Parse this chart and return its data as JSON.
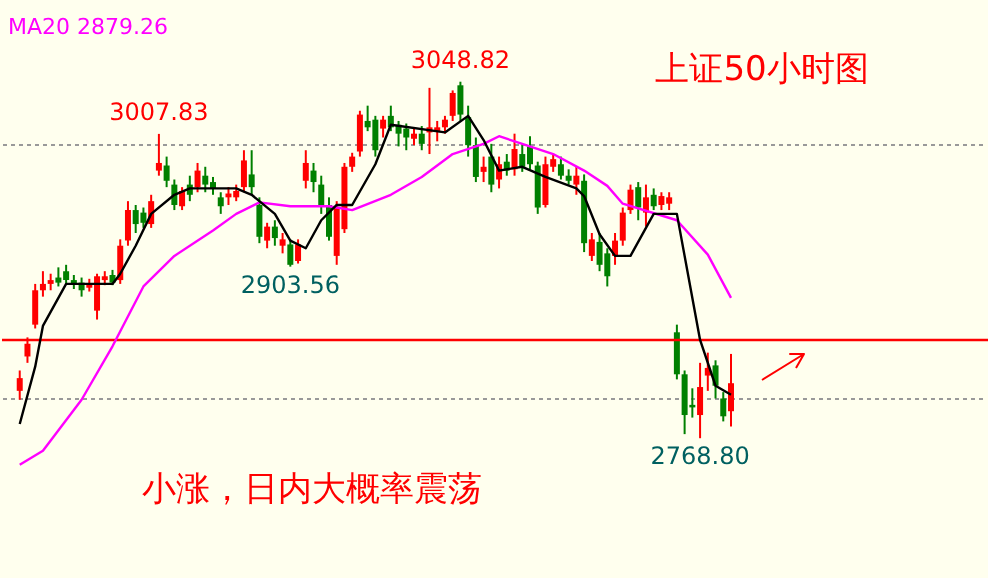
{
  "chart_data": {
    "type": "candlestick",
    "title": "上证50小时图",
    "categories": [
      null,
      null,
      null,
      null,
      null,
      null,
      null,
      null,
      null,
      null,
      null,
      null,
      null,
      null,
      null,
      null,
      null,
      null,
      null,
      null,
      null,
      null,
      null,
      null,
      null,
      null,
      null,
      null,
      null,
      null,
      null,
      null,
      null,
      null,
      null,
      null,
      null,
      null,
      null,
      null,
      null,
      null,
      null,
      null,
      null,
      null,
      null,
      null,
      null,
      null,
      null,
      null,
      null,
      null,
      null,
      null,
      null,
      null,
      null,
      null,
      null,
      null,
      null,
      null,
      null,
      null,
      null,
      null,
      null,
      null,
      null,
      null,
      null,
      null,
      null,
      null,
      null,
      null,
      null,
      null,
      null,
      null,
      null,
      null,
      null,
      null,
      null,
      null,
      null,
      null,
      null,
      null,
      null
    ],
    "ohlc": [
      [
        2806,
        2822,
        2799,
        2816
      ],
      [
        2833,
        2848,
        2828,
        2843
      ],
      [
        2858,
        2890,
        2855,
        2885
      ],
      [
        2885,
        2900,
        2880,
        2890
      ],
      [
        2890,
        2898,
        2885,
        2893
      ],
      [
        2895,
        2903,
        2888,
        2891
      ],
      [
        2900,
        2905,
        2890,
        2893
      ],
      [
        2893,
        2897,
        2886,
        2890
      ],
      [
        2891,
        2895,
        2880,
        2885
      ],
      [
        2887,
        2894,
        2884,
        2890
      ],
      [
        2869,
        2898,
        2862,
        2896
      ],
      [
        2893,
        2900,
        2889,
        2896
      ],
      [
        2897,
        2901,
        2889,
        2891
      ],
      [
        2893,
        2925,
        2890,
        2920
      ],
      [
        2924,
        2955,
        2920,
        2948
      ],
      [
        2948,
        2952,
        2930,
        2937
      ],
      [
        2946,
        2950,
        2934,
        2938
      ],
      [
        2937,
        2960,
        2934,
        2955
      ],
      [
        2979,
        3007.83,
        2975,
        2985
      ],
      [
        2983,
        2990,
        2966,
        2971
      ],
      [
        2968,
        2972,
        2948,
        2952
      ],
      [
        2951,
        2966,
        2948,
        2963
      ],
      [
        2968,
        2975,
        2955,
        2960
      ],
      [
        2966,
        2985,
        2962,
        2979
      ],
      [
        2975,
        2982,
        2962,
        2968
      ],
      [
        2970,
        2974,
        2960,
        2965
      ],
      [
        2958,
        2962,
        2945,
        2951
      ],
      [
        2958,
        2966,
        2952,
        2961
      ],
      [
        2958,
        2968,
        2955,
        2963
      ],
      [
        2966,
        2995,
        2962,
        2987
      ],
      [
        2976,
        2995,
        2960,
        2966
      ],
      [
        2952,
        2958,
        2922,
        2927
      ],
      [
        2924,
        2938,
        2918,
        2935
      ],
      [
        2935,
        2940,
        2920,
        2926
      ],
      [
        2920,
        2930,
        2914,
        2925
      ],
      [
        2921,
        2925,
        2903.56,
        2905
      ],
      [
        2908,
        2925,
        2906,
        2921
      ],
      [
        2971,
        2995,
        2965,
        2985
      ],
      [
        2979,
        2985,
        2962,
        2970
      ],
      [
        2968,
        2975,
        2945,
        2952
      ],
      [
        2952,
        2958,
        2924,
        2927
      ],
      [
        2912,
        2955,
        2905,
        2950
      ],
      [
        2933,
        2985,
        2930,
        2982
      ],
      [
        2982,
        2993,
        2978,
        2990
      ],
      [
        2994,
        3026,
        2990,
        3023
      ],
      [
        3018,
        3030,
        3010,
        3013
      ],
      [
        3019,
        3022,
        2990,
        2995
      ],
      [
        3012,
        3022,
        3005,
        3019
      ],
      [
        3022,
        3030,
        3010,
        3013
      ],
      [
        3015,
        3018,
        2998,
        3008
      ],
      [
        3012,
        3016,
        2995,
        3005
      ],
      [
        3004,
        3012,
        2999,
        3008
      ],
      [
        3008,
        3014,
        2995,
        3000
      ],
      [
        3009,
        3044,
        2992,
        3013
      ],
      [
        3010,
        3018,
        3002,
        3013
      ],
      [
        3013,
        3022,
        3008,
        3019
      ],
      [
        3022,
        3042,
        3018,
        3040
      ],
      [
        3046,
        3048.82,
        3018,
        3023
      ],
      [
        3021,
        3030,
        2990,
        2999
      ],
      [
        2999,
        3005,
        2970,
        2974
      ],
      [
        2978,
        2990,
        2970,
        2982
      ],
      [
        2990,
        3000,
        2962,
        2968
      ],
      [
        2972,
        2990,
        2965,
        2984
      ],
      [
        2986,
        2992,
        2975,
        2979
      ],
      [
        2980,
        3008,
        2975,
        2996
      ],
      [
        2992,
        3000,
        2978,
        2982
      ],
      [
        2998,
        3006,
        2980,
        2984
      ],
      [
        2983,
        2986,
        2945,
        2950
      ],
      [
        2952,
        2990,
        2950,
        2984
      ],
      [
        2982,
        2992,
        2978,
        2988
      ],
      [
        2984,
        2990,
        2972,
        2975
      ],
      [
        2975,
        2980,
        2968,
        2971
      ],
      [
        2968,
        2982,
        2960,
        2975
      ],
      [
        2971,
        2976,
        2915,
        2922
      ],
      [
        2912,
        2930,
        2908,
        2925
      ],
      [
        2923,
        2930,
        2900,
        2905
      ],
      [
        2914,
        2918,
        2888,
        2896
      ],
      [
        2912,
        2930,
        2905,
        2924
      ],
      [
        2924,
        2950,
        2920,
        2946
      ],
      [
        2948,
        2968,
        2945,
        2964
      ],
      [
        2966,
        2970,
        2940,
        2950
      ],
      [
        2946,
        2968,
        2935,
        2958
      ],
      [
        2960,
        2965,
        2948,
        2951
      ],
      [
        2952,
        2962,
        2948,
        2959
      ],
      [
        2953,
        2962,
        2948,
        2958
      ],
      [
        2852,
        2858,
        2815,
        2819
      ],
      [
        2819,
        2822,
        2772,
        2787
      ],
      [
        2795,
        2808,
        2785,
        2793
      ],
      [
        2787,
        2828,
        2768.8,
        2809
      ],
      [
        2818,
        2836,
        2806,
        2824
      ],
      [
        2826,
        2830,
        2800,
        2810
      ],
      [
        2800,
        2805,
        2782,
        2786
      ],
      [
        2790,
        2835,
        2778,
        2812
      ]
    ],
    "colors": [
      "#ff0000",
      "#ff0000",
      "#ff0000",
      "#ff0000",
      "#ff0000",
      "#008000",
      "#008000",
      "#008000",
      "#008000",
      "#ff0000",
      "#ff0000",
      "#ff0000",
      "#008000",
      "#ff0000",
      "#ff0000",
      "#008000",
      "#008000",
      "#ff0000",
      "#ff0000",
      "#008000",
      "#008000",
      "#ff0000",
      "#008000",
      "#ff0000",
      "#008000",
      "#008000",
      "#008000",
      "#ff0000",
      "#ff0000",
      "#ff0000",
      "#008000",
      "#008000",
      "#ff0000",
      "#008000",
      "#ff0000",
      "#008000",
      "#ff0000",
      "#ff0000",
      "#008000",
      "#008000",
      "#008000",
      "#ff0000",
      "#ff0000",
      "#ff0000",
      "#ff0000",
      "#008000",
      "#008000",
      "#ff0000",
      "#008000",
      "#008000",
      "#008000",
      "#ff0000",
      "#008000",
      "#ff0000",
      "#ff0000",
      "#ff0000",
      "#ff0000",
      "#008000",
      "#008000",
      "#008000",
      "#ff0000",
      "#008000",
      "#ff0000",
      "#008000",
      "#ff0000",
      "#008000",
      "#008000",
      "#008000",
      "#ff0000",
      "#ff0000",
      "#008000",
      "#008000",
      "#ff0000",
      "#008000",
      "#ff0000",
      "#008000",
      "#008000",
      "#ff0000",
      "#ff0000",
      "#ff0000",
      "#008000",
      "#ff0000",
      "#008000",
      "#ff0000",
      "#ff0000",
      "#008000",
      "#008000",
      "#008000",
      "#ff0000",
      "#ff0000",
      "#008000",
      "#008000",
      "#ff0000"
    ],
    "series": [
      {
        "name": "MA20 2879.26",
        "type": "line",
        "color": "#ff00ff",
        "values": [
          2748,
          null,
          null,
          2759,
          null,
          null,
          null,
          null,
          2799,
          null,
          null,
          null,
          2841,
          null,
          null,
          null,
          2888,
          null,
          null,
          null,
          2912,
          null,
          null,
          null,
          null,
          2932,
          null,
          null,
          2945,
          null,
          null,
          2954,
          null,
          null,
          null,
          2951,
          null,
          null,
          null,
          null,
          2951,
          null,
          null,
          2948,
          null,
          null,
          null,
          null,
          2960,
          null,
          null,
          null,
          2974,
          null,
          null,
          null,
          2992,
          null,
          null,
          null,
          3000,
          null,
          3006,
          null,
          null,
          3000,
          null,
          null,
          null,
          2992,
          null,
          null,
          null,
          2979,
          null,
          null,
          2967,
          null,
          2953,
          null,
          null,
          null,
          null,
          null,
          null,
          2940,
          null,
          null,
          null,
          2913,
          null,
          null,
          2879
        ]
      },
      {
        "type": "line",
        "color": "#000000",
        "values": [
          2780,
          null,
          2825,
          2857,
          null,
          null,
          2890,
          null,
          null,
          null,
          null,
          null,
          2890,
          2898,
          null,
          2920,
          null,
          2945,
          null,
          null,
          2960,
          null,
          2965,
          null,
          null,
          null,
          null,
          null,
          2965,
          null,
          2960,
          null,
          null,
          2945,
          null,
          2924,
          null,
          2918,
          null,
          2940,
          null,
          2952,
          null,
          2952,
          null,
          null,
          2984,
          null,
          3015,
          null,
          null,
          null,
          null,
          null,
          null,
          3009,
          null,
          null,
          3022,
          null,
          3003,
          null,
          2979,
          null,
          null,
          2982,
          null,
          null,
          2974,
          null,
          null,
          null,
          2965,
          2959,
          null,
          2929,
          null,
          2912,
          null,
          2912,
          null,
          null,
          2945,
          null,
          null,
          2945,
          null,
          null,
          2846,
          null,
          2810,
          null,
          2803
        ]
      }
    ],
    "ylim": [
      2659,
      3113
    ],
    "yticks": [
      {
        "value": 3000,
        "label": null
      },
      {
        "value": 2800,
        "label": null
      }
    ],
    "grid": "y",
    "tick_labels": false,
    "ref_lines": [
      {
        "axis": "y",
        "value": 2846,
        "color": "#ff0000"
      }
    ],
    "annotations": [
      {
        "text": "3007.83",
        "y": 3007.83
      },
      {
        "text": "3048.82",
        "y": 3048.82
      },
      {
        "text": "2903.56",
        "y": 2903.56
      },
      {
        "text": "2768.80",
        "y": 2768.8
      },
      "小涨，日内大概率震荡"
    ]
  }
}
